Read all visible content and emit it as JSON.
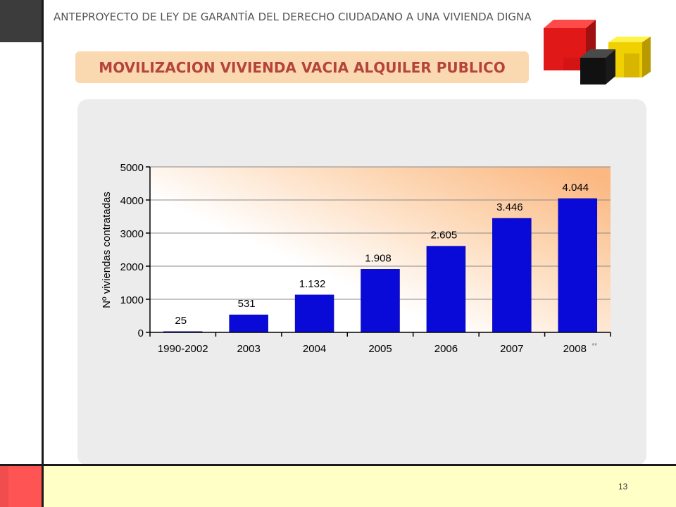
{
  "header": {
    "title": "ANTEPROYECTO  DE LEY DE GARANTÍA DEL DERECHO CIUDADANO A UNA VIVIENDA DIGNA"
  },
  "banner": {
    "title": "MOVILIZACION VIVIENDA VACIA ALQUILER PUBLICO"
  },
  "footer": {
    "page_number": "13"
  },
  "colors": {
    "bar": "#0a0ad8",
    "banner_bg": "#fbd9b0",
    "banner_text": "#b5443a",
    "footer_bg": "#ffffc6",
    "footer_accent": "#ff5454"
  },
  "chart_data": {
    "type": "bar",
    "categories": [
      "1990-2002",
      "2003",
      "2004",
      "2005",
      "2006",
      "2007",
      "2008"
    ],
    "category_note": "**",
    "values": [
      25,
      531,
      1132,
      1908,
      2605,
      3446,
      4044
    ],
    "data_labels": [
      "25",
      "531",
      "1.132",
      "1.908",
      "2.605",
      "3.446",
      "4.044"
    ],
    "title": "",
    "xlabel": "",
    "ylabel": "Nº viviendas contratadas",
    "ylim": [
      0,
      5000
    ],
    "yticks": [
      0,
      1000,
      2000,
      3000,
      4000,
      5000
    ],
    "grid": true,
    "legend": "none"
  }
}
